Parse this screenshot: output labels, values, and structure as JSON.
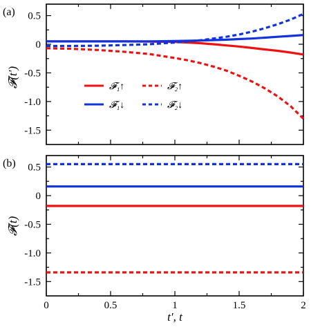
{
  "colors": {
    "up": "#ee1111",
    "down": "#1133dd"
  },
  "x_label": "t′, t",
  "panels": [
    {
      "label": "(a)",
      "ylabel": "𝓕(t′)",
      "xlim": [
        0,
        2
      ],
      "ylim": [
        -1.75,
        0.7
      ],
      "xticks": [
        0,
        0.5,
        1,
        1.5,
        2
      ],
      "yticks": [
        0.5,
        0,
        -0.5,
        -1,
        -1.5
      ],
      "ytick_labels": [
        "0.5",
        "0",
        "-0.5",
        "-1.0",
        "-1.5"
      ],
      "series": [
        {
          "key": "F1up",
          "name": "𝓕₁↑",
          "color_key": "up",
          "dash": "solid",
          "x": [
            0,
            0.2,
            0.4,
            0.6,
            0.8,
            1.0,
            1.1,
            1.2,
            1.3,
            1.4,
            1.5,
            1.6,
            1.7,
            1.8,
            1.9,
            2.0
          ],
          "y": [
            0.05,
            0.05,
            0.05,
            0.049,
            0.047,
            0.04,
            0.03,
            0.018,
            0.0,
            -0.02,
            -0.04,
            -0.065,
            -0.09,
            -0.115,
            -0.145,
            -0.18
          ]
        },
        {
          "key": "F1down",
          "name": "𝓕₁↓",
          "color_key": "down",
          "dash": "solid",
          "x": [
            0,
            0.2,
            0.4,
            0.6,
            0.8,
            1.0,
            1.1,
            1.2,
            1.3,
            1.4,
            1.5,
            1.6,
            1.7,
            1.8,
            1.9,
            2.0
          ],
          "y": [
            0.05,
            0.05,
            0.05,
            0.05,
            0.051,
            0.055,
            0.06,
            0.065,
            0.072,
            0.08,
            0.09,
            0.1,
            0.115,
            0.13,
            0.145,
            0.16
          ]
        },
        {
          "key": "F2up",
          "name": "𝓕₂↑",
          "color_key": "up",
          "dash": "dashed",
          "x": [
            0,
            0.2,
            0.4,
            0.6,
            0.8,
            1.0,
            1.1,
            1.2,
            1.3,
            1.4,
            1.5,
            1.6,
            1.7,
            1.8,
            1.9,
            2.0
          ],
          "y": [
            -0.07,
            -0.08,
            -0.1,
            -0.13,
            -0.17,
            -0.24,
            -0.28,
            -0.33,
            -0.39,
            -0.46,
            -0.55,
            -0.65,
            -0.77,
            -0.91,
            -1.08,
            -1.3
          ]
        },
        {
          "key": "F2down",
          "name": "𝓕₂↓",
          "color_key": "down",
          "dash": "dashed",
          "x": [
            0,
            0.2,
            0.4,
            0.6,
            0.8,
            1.0,
            1.1,
            1.2,
            1.3,
            1.4,
            1.5,
            1.6,
            1.7,
            1.8,
            1.9,
            2.0
          ],
          "y": [
            -0.03,
            -0.03,
            -0.025,
            -0.015,
            0.0,
            0.03,
            0.05,
            0.07,
            0.1,
            0.13,
            0.17,
            0.22,
            0.28,
            0.35,
            0.43,
            0.53
          ]
        }
      ]
    },
    {
      "label": "(b)",
      "ylabel": "𝓕(t)",
      "xlim": [
        0,
        2
      ],
      "ylim": [
        -1.75,
        0.7
      ],
      "xticks": [
        0,
        0.5,
        1,
        1.5,
        2
      ],
      "xtick_labels": [
        "0",
        "0.5",
        "1",
        "1.5",
        "2"
      ],
      "yticks": [
        0.5,
        0,
        -0.5,
        -1,
        -1.5
      ],
      "ytick_labels": [
        "0.5",
        "0",
        "-0.5",
        "-1.0",
        "-1.5"
      ],
      "series": [
        {
          "key": "F1up",
          "color_key": "up",
          "dash": "solid",
          "x": [
            0,
            2
          ],
          "y": [
            -0.18,
            -0.18
          ]
        },
        {
          "key": "F1down",
          "color_key": "down",
          "dash": "solid",
          "x": [
            0,
            2
          ],
          "y": [
            0.16,
            0.16
          ]
        },
        {
          "key": "F2up",
          "color_key": "up",
          "dash": "dashed",
          "x": [
            0,
            2
          ],
          "y": [
            -1.34,
            -1.34
          ]
        },
        {
          "key": "F2down",
          "color_key": "down",
          "dash": "dashed",
          "x": [
            0,
            2
          ],
          "y": [
            0.55,
            0.55
          ]
        }
      ]
    }
  ],
  "chart_data": [
    {
      "type": "line",
      "title": "(a)",
      "xlabel": "",
      "ylabel": "𝓕(t′)",
      "xlim": [
        0,
        2
      ],
      "ylim": [
        -1.75,
        0.7
      ],
      "legend_placement": "center-left",
      "series": [
        {
          "name": "𝓕₁↑",
          "style": "solid red"
        },
        {
          "name": "𝓕₁↓",
          "style": "solid blue"
        },
        {
          "name": "𝓕₂↑",
          "style": "dashed red"
        },
        {
          "name": "𝓕₂↓",
          "style": "dashed blue"
        }
      ]
    },
    {
      "type": "line",
      "title": "(b)",
      "xlabel": "t′, t",
      "ylabel": "𝓕(t)",
      "xlim": [
        0,
        2
      ],
      "ylim": [
        -1.75,
        0.7
      ],
      "series": [
        {
          "name": "",
          "style": "solid red",
          "constant": -0.18
        },
        {
          "name": "",
          "style": "solid blue",
          "constant": 0.16
        },
        {
          "name": "",
          "style": "dashed red",
          "constant": -1.34
        },
        {
          "name": "",
          "style": "dashed blue",
          "constant": 0.55
        }
      ]
    }
  ]
}
